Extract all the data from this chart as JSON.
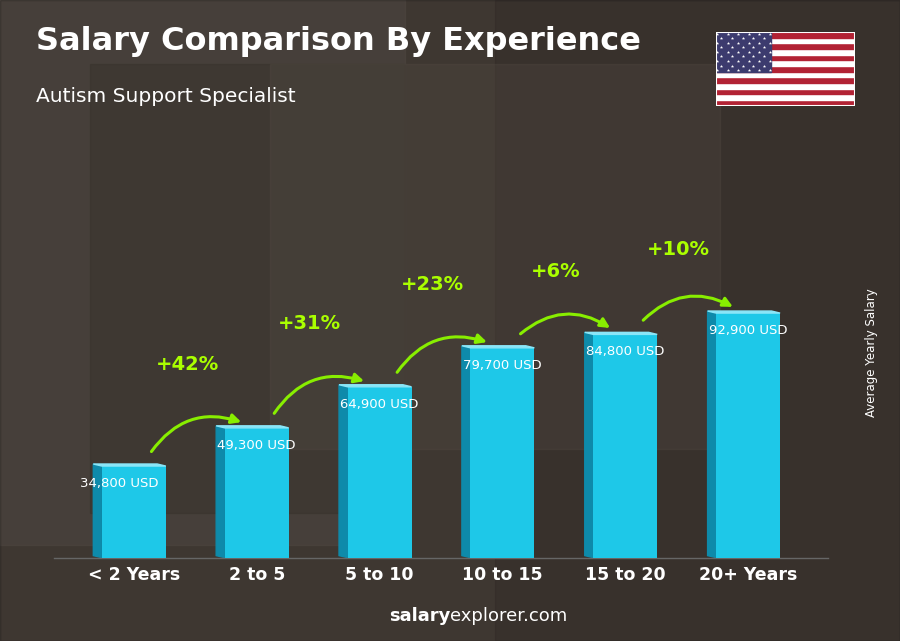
{
  "title": "Salary Comparison By Experience",
  "subtitle": "Autism Support Specialist",
  "categories": [
    "< 2 Years",
    "2 to 5",
    "5 to 10",
    "10 to 15",
    "15 to 20",
    "20+ Years"
  ],
  "values": [
    34800,
    49300,
    64900,
    79700,
    84800,
    92900
  ],
  "salary_labels": [
    "34,800 USD",
    "49,300 USD",
    "64,900 USD",
    "79,700 USD",
    "84,800 USD",
    "92,900 USD"
  ],
  "pct_changes": [
    "+42%",
    "+31%",
    "+23%",
    "+6%",
    "+10%"
  ],
  "bar_color_face": "#1ec8e8",
  "bar_color_left": "#0e8aaa",
  "bar_color_top": "#8ae6f8",
  "pct_color": "#aaff00",
  "salary_label_color": "#ffffff",
  "watermark_salary": "salary",
  "watermark_rest": "explorer.com",
  "ylabel_text": "Average Yearly Salary",
  "bar_width": 0.52,
  "bg_overlay_color": "#3a3a3a",
  "arrow_color": "#88ee00"
}
